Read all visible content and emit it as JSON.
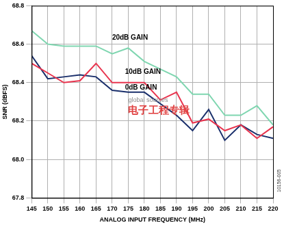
{
  "chart_data": {
    "type": "line",
    "x_label": "ANALOG INPUT FREQUENCY (MHz)",
    "y_label": "SNR (dBFS)",
    "x": [
      145,
      150,
      155,
      160,
      165,
      170,
      175,
      180,
      185,
      190,
      195,
      200,
      205,
      210,
      215,
      220
    ],
    "series": [
      {
        "name": "20dB GAIN",
        "color": "#7fd6b0",
        "values": [
          68.67,
          68.6,
          68.59,
          68.59,
          68.59,
          68.55,
          68.58,
          68.51,
          68.47,
          68.43,
          68.34,
          68.34,
          68.23,
          68.23,
          68.28,
          68.18
        ]
      },
      {
        "name": "10dB GAIN",
        "color": "#e8344e",
        "values": [
          68.5,
          68.45,
          68.4,
          68.41,
          68.5,
          68.4,
          68.4,
          68.4,
          68.31,
          68.35,
          68.19,
          68.21,
          68.15,
          68.18,
          68.11,
          68.17
        ]
      },
      {
        "name": "0dB GAIN",
        "color": "#1a2f6b",
        "values": [
          68.54,
          68.42,
          68.43,
          68.44,
          68.43,
          68.36,
          68.35,
          68.35,
          68.29,
          68.23,
          68.15,
          68.26,
          68.1,
          68.18,
          68.13,
          68.11
        ]
      }
    ],
    "xlim": [
      145,
      220
    ],
    "xticks": [
      145,
      150,
      155,
      160,
      165,
      170,
      175,
      180,
      185,
      190,
      195,
      200,
      205,
      210,
      215,
      220
    ],
    "ylim": [
      67.8,
      68.8
    ],
    "yticks": [
      67.8,
      {
        "value": 68,
        "label": "68.0"
      },
      68.2,
      68.4,
      68.6,
      68.8
    ],
    "grid": true,
    "annotations": [
      {
        "text": "20dB GAIN",
        "x": 170,
        "y": 68.635
      },
      {
        "text": "10dB GAIN",
        "x": 174,
        "y": 68.455
      },
      {
        "text": "0dB GAIN",
        "x": 174,
        "y": 68.375
      },
      {
        "text": "global sources",
        "x": 175,
        "y": 68.31,
        "color": "#8a8a8a"
      },
      {
        "text": "电子工程专辑",
        "x": 175,
        "y": 68.255,
        "color": "#e04040"
      },
      {
        "text": "10156-005",
        "x": 222,
        "y": 67.83,
        "color": "#333333"
      }
    ]
  }
}
